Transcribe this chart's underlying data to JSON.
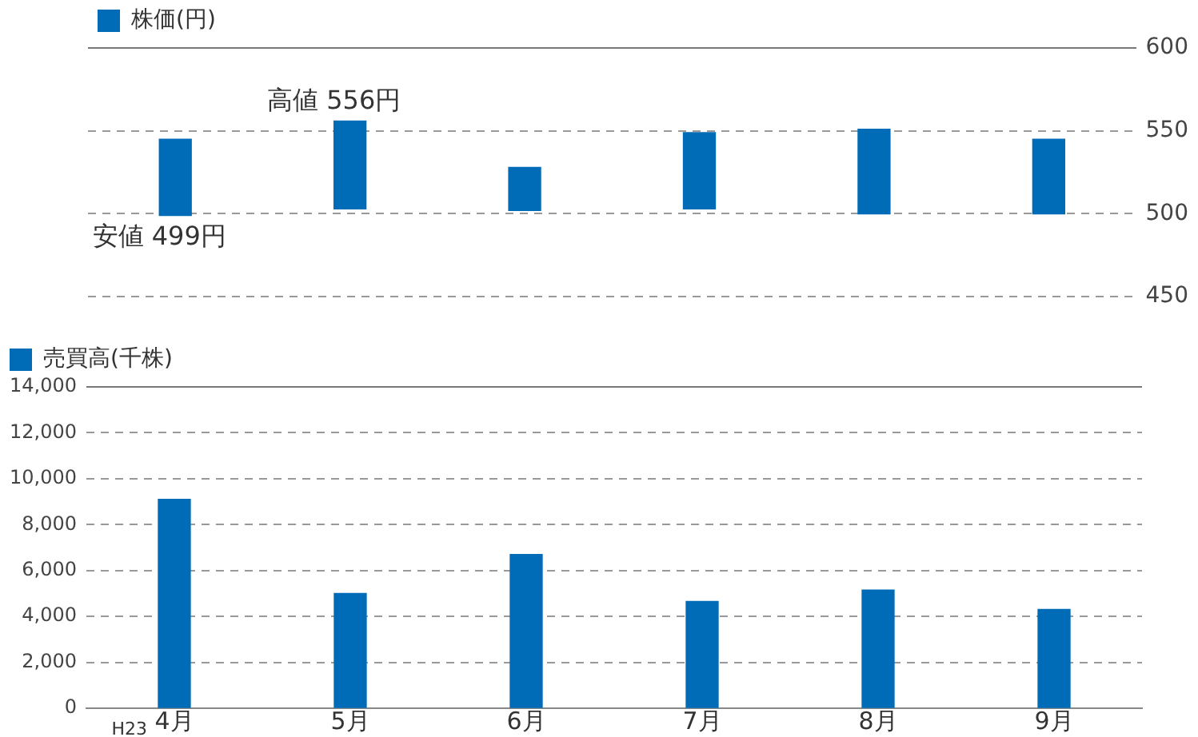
{
  "chart_data": [
    {
      "type": "bar",
      "categories": [
        "4月",
        "5月",
        "6月",
        "7月",
        "8月",
        "9月"
      ],
      "series": [
        {
          "name": "株価(円)",
          "color": "#006cb7",
          "values": [
            46,
            53,
            26,
            46,
            51,
            45
          ],
          "base": [
            499,
            503,
            502,
            503,
            500,
            500
          ]
        }
      ],
      "ylim": [
        450,
        600
      ],
      "yticks": [
        450,
        500,
        550,
        600
      ],
      "grid": "y",
      "legend": "top left",
      "tick_labels": "y",
      "annotations": [
        {
          "text": "高値 556円",
          "x": "5月",
          "y": 556
        },
        {
          "text": "安値 499円",
          "x": "4月",
          "y": 499
        }
      ]
    },
    {
      "type": "bar",
      "categories": [
        "4月",
        "5月",
        "6月",
        "7月",
        "8月",
        "9月"
      ],
      "series": [
        {
          "name": "売買高(千株)",
          "color": "#006cb7",
          "values": [
            9100,
            5000,
            6700,
            4650,
            5150,
            4300
          ]
        }
      ],
      "ylim": [
        0,
        14000
      ],
      "yticks": [
        0,
        {
          "value": 2000,
          "label": "2,000"
        },
        {
          "value": 4000,
          "label": "4,000"
        },
        {
          "value": 6000,
          "label": "6,000"
        },
        {
          "value": 8000,
          "label": "8,000"
        },
        {
          "value": 10000,
          "label": "10,000"
        },
        {
          "value": 12000,
          "label": "12,000"
        },
        {
          "value": 14000,
          "label": "14,000"
        }
      ],
      "grid": "y",
      "legend": "top left",
      "annotations": [
        "H23"
      ]
    }
  ]
}
